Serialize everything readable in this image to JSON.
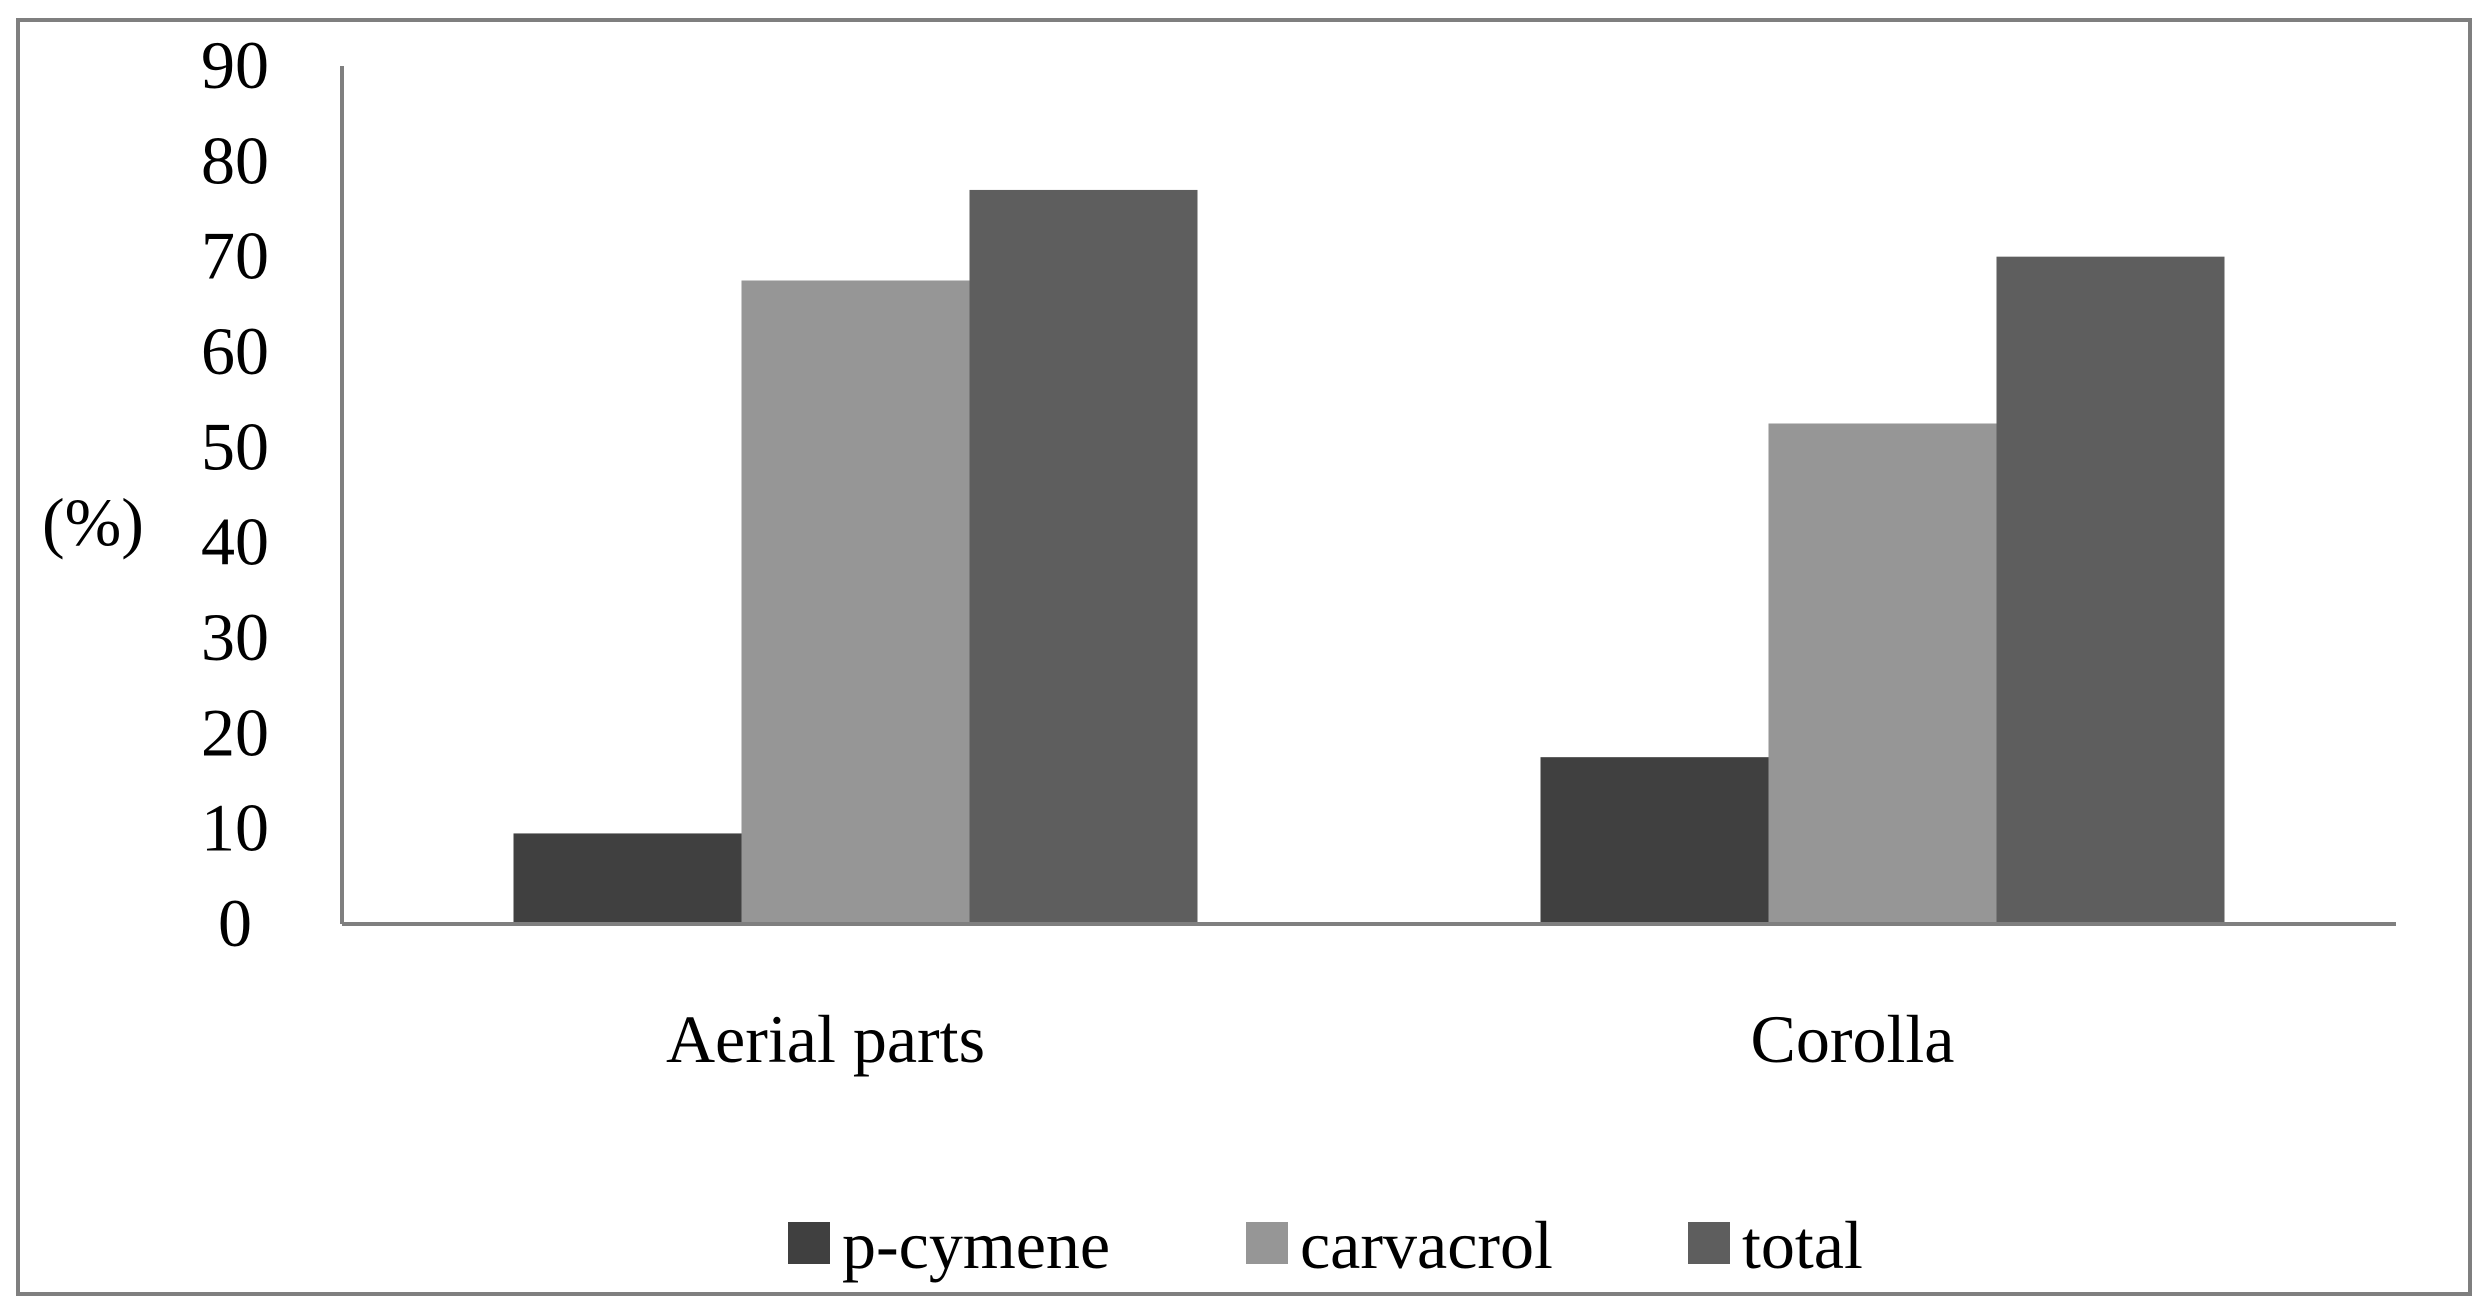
{
  "chart_data": {
    "type": "bar",
    "categories": [
      "Aerial parts",
      "Corolla"
    ],
    "series": [
      {
        "name": "p-cymene",
        "values": [
          9.5,
          17.5
        ],
        "color": "#404040"
      },
      {
        "name": "carvacrol",
        "values": [
          67.5,
          52.5
        ],
        "color": "#969696"
      },
      {
        "name": "total",
        "values": [
          77,
          70
        ],
        "color": "#5e5e5e"
      }
    ],
    "ylabel": "(%)",
    "ylim": [
      0,
      90
    ],
    "yticks": [
      "0",
      "10",
      "20",
      "30",
      "40",
      "50",
      "60",
      "70",
      "80",
      "90"
    ],
    "grid": false,
    "legend_position": "bottom"
  }
}
